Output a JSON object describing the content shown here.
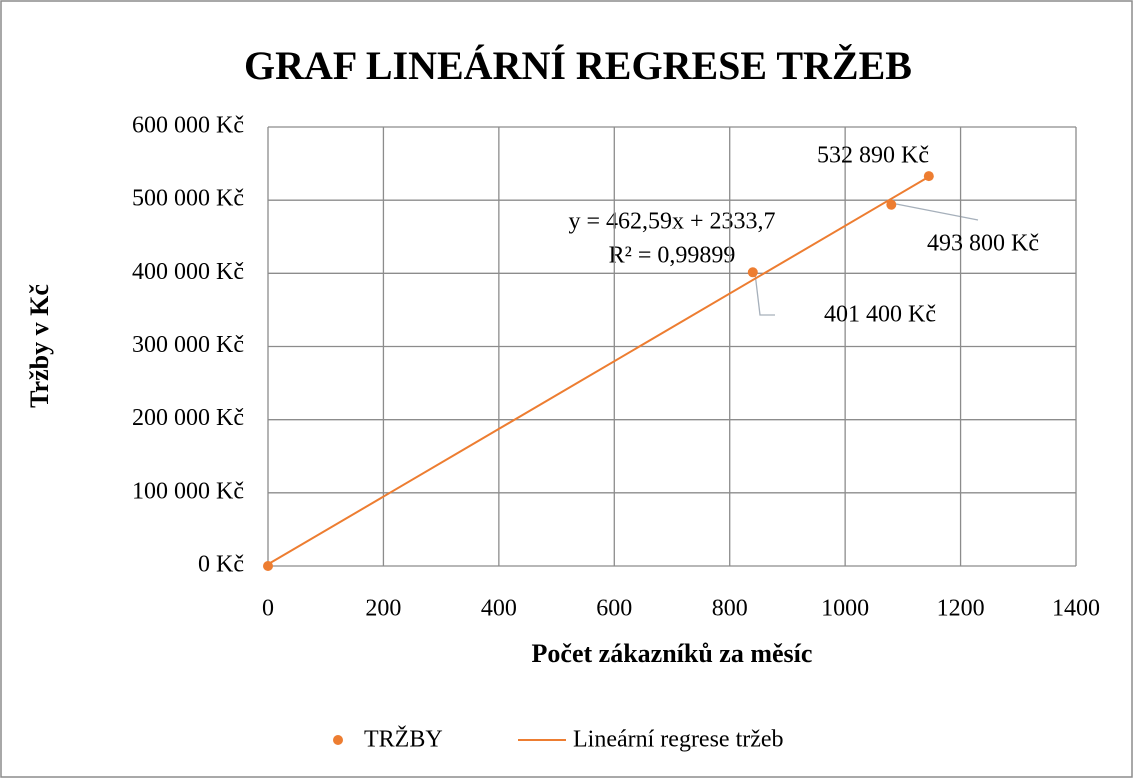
{
  "chart_data": {
    "type": "scatter",
    "title": "GRAF LINEÁRNÍ REGRESE TRŽEB",
    "x_label": "Počet zákazníků za měsíc",
    "y_label": "Tržby v Kč",
    "series": [
      {
        "name": "TRŽBY",
        "color": "#ED7D31",
        "x": [
          0,
          840,
          1080,
          1145
        ],
        "values": [
          0,
          401400,
          493800,
          532890
        ],
        "value_labels": [
          null,
          "401 400 Kč",
          "493 800 Kč",
          "532 890 Kč"
        ]
      },
      {
        "name": "Lineární regrese tržeb",
        "color": "#ED7D31",
        "type": "line",
        "x": [
          0,
          1145
        ],
        "values": [
          2333.7,
          532000
        ]
      }
    ],
    "annotations": [
      "y = 462,59x + 2333,7",
      "R² = 0,99899"
    ],
    "xlim": [
      0,
      1400
    ],
    "xticks": [
      0,
      200,
      400,
      600,
      800,
      1000,
      1200,
      1400
    ],
    "ylim": [
      0,
      600000
    ],
    "yticks": [
      {
        "value": 0,
        "label": "0 Kč"
      },
      {
        "value": 100000,
        "label": "100 000 Kč"
      },
      {
        "value": 200000,
        "label": "200 000 Kč"
      },
      {
        "value": 300000,
        "label": "300 000 Kč"
      },
      {
        "value": 400000,
        "label": "400 000 Kč"
      },
      {
        "value": 500000,
        "label": "500 000 Kč"
      },
      {
        "value": 600000,
        "label": "600 000 Kč"
      }
    ],
    "grid": true,
    "legend": "bottom"
  }
}
